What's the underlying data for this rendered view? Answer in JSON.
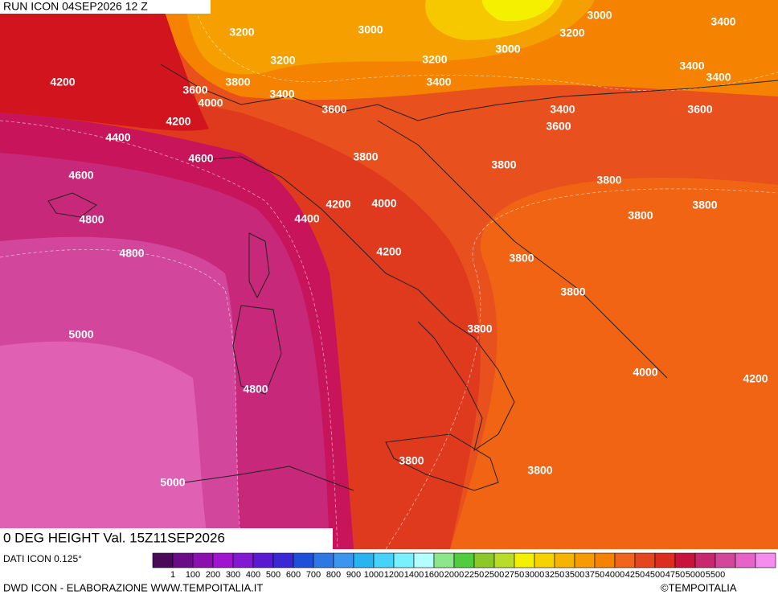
{
  "header": {
    "run": "RUN ICON 04SEP2026 12 Z",
    "field": "0 DEG HEIGHT Val. 15Z11SEP2026"
  },
  "contour_labels": [
    3200,
    3000,
    3000,
    3000,
    3400,
    3200,
    3200,
    3200,
    3000,
    3400,
    3400,
    4200,
    3800,
    3600,
    4000,
    3400,
    3400,
    3600,
    3400,
    4200,
    3600,
    3600,
    4400,
    4600,
    3800,
    3800,
    4600,
    3800,
    3800,
    4400,
    4200,
    4000,
    3800,
    4800,
    4200,
    4800,
    3800,
    3800,
    3800,
    5000,
    4000,
    4200,
    4800,
    3800,
    3800,
    5000
  ],
  "legend": {
    "title": "DATI ICON 0.125°",
    "colors": [
      "#4a0a58",
      "#6a0c88",
      "#8a10b0",
      "#a014d0",
      "#8218d2",
      "#5a1ad2",
      "#3a28d6",
      "#1e50dc",
      "#2e78e6",
      "#3c96f0",
      "#28b4f0",
      "#46d2fa",
      "#78f0ff",
      "#b4ffff",
      "#8ce68c",
      "#50cd3c",
      "#8cc828",
      "#b9dc28",
      "#f5f000",
      "#f5d200",
      "#f5b400",
      "#f59b00",
      "#f58200",
      "#f0641e",
      "#e6461e",
      "#dc2d1e",
      "#c8143c",
      "#c8286e",
      "#d2469b",
      "#e664c8",
      "#f58cf0"
    ],
    "ticks": [
      1,
      100,
      200,
      300,
      400,
      500,
      600,
      700,
      800,
      900,
      1000,
      1200,
      1400,
      1600,
      2000,
      2250,
      2500,
      2750,
      3000,
      3250,
      3500,
      3750,
      4000,
      4250,
      4500,
      4750,
      5000,
      5500
    ]
  },
  "footer": {
    "credit": "DWD ICON - ELABORAZIONE WWW.TEMPOITALIA.IT",
    "copyright": "©TEMPOITALIA"
  }
}
